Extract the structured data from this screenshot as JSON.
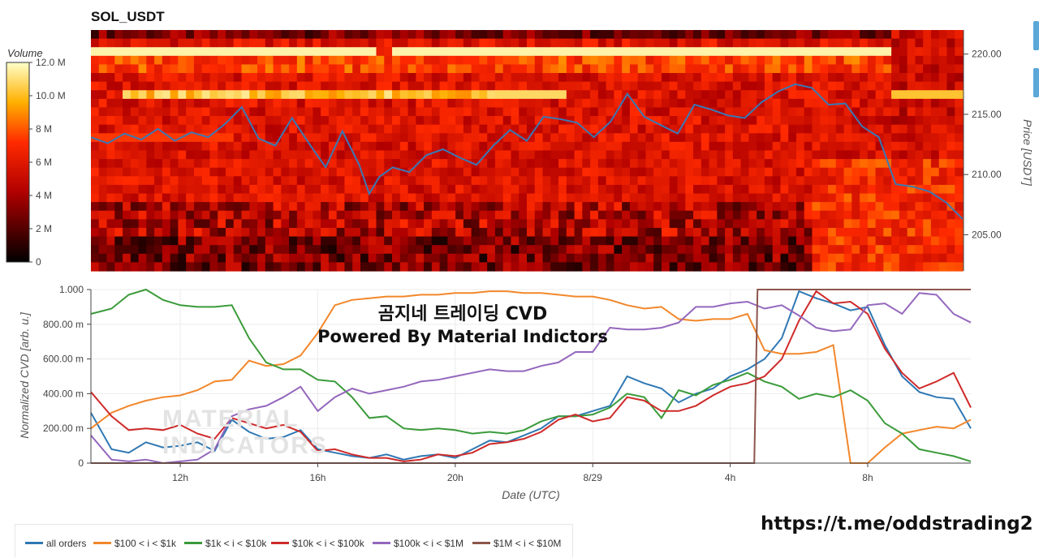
{
  "header": {
    "title": "SOL_USDT"
  },
  "colorbar": {
    "title": "Volume",
    "ticks": [
      "12.0 M",
      "10.0 M",
      "8 M",
      "6 M",
      "4 M",
      "2 M",
      "0"
    ],
    "tick_values": [
      12,
      10,
      8,
      6,
      4,
      2,
      0
    ]
  },
  "overlay": {
    "title": "곰지네 트레이딩 CVD",
    "subtitle": "Powered By Material Indictors",
    "watermark_line1": "MATERIAL",
    "watermark_line2": "INDICATORS"
  },
  "footer": {
    "url": "https://t.me/oddstrading2"
  },
  "colors": {
    "price_line": "#3b78b5",
    "all_orders": "#2f78b4",
    "c100_1k": "#f2872b",
    "c1k_10k": "#3a9b3a",
    "c10k_100k": "#cf2a2a",
    "c100k_1m": "#9467bd",
    "c1m_10m": "#8c564b"
  },
  "chart_data": [
    {
      "type": "heatmap",
      "title": "SOL_USDT",
      "ylabel": "Price [USDT]",
      "ylim": [
        202,
        222
      ],
      "y_ticks": [
        "220.00",
        "215.00",
        "210.00",
        "205.00"
      ],
      "y_tick_values": [
        220,
        215,
        210,
        205
      ],
      "colorbar_label": "Volume",
      "colorbar_range": [
        0,
        12
      ],
      "price_series": {
        "name": "Price",
        "x_hours": [
          9.0,
          9.5,
          10.0,
          10.5,
          11.0,
          11.5,
          12.0,
          12.5,
          13.0,
          13.5,
          14.0,
          14.5,
          15.0,
          15.5,
          16.0,
          16.5,
          17.0,
          17.3,
          17.6,
          18.0,
          18.5,
          19.0,
          19.5,
          20.0,
          20.5,
          21.0,
          21.5,
          22.0,
          22.5,
          23.0,
          23.5,
          24.0,
          24.5,
          25.0,
          25.5,
          26.0,
          26.5,
          27.0,
          27.5,
          28.0,
          28.5,
          29.0,
          29.5,
          30.0,
          30.5,
          31.0,
          31.5,
          32.0,
          32.5,
          33.0,
          33.5,
          34.0,
          34.5,
          35.0
        ],
        "price": [
          213.1,
          212.6,
          213.4,
          212.9,
          213.8,
          212.8,
          213.5,
          213.1,
          214.2,
          215.6,
          213.0,
          212.4,
          214.7,
          212.6,
          210.6,
          213.6,
          210.8,
          208.4,
          209.8,
          210.6,
          210.2,
          211.6,
          212.1,
          211.4,
          210.8,
          212.4,
          213.7,
          212.8,
          214.8,
          214.6,
          214.3,
          213.1,
          214.4,
          216.7,
          214.8,
          214.1,
          213.4,
          215.8,
          215.4,
          214.9,
          214.7,
          216.0,
          216.9,
          217.5,
          217.2,
          215.8,
          215.9,
          214.0,
          213.1,
          209.2,
          209.0,
          208.6,
          207.7,
          206.3
        ]
      }
    },
    {
      "type": "line",
      "xlabel": "Date (UTC)",
      "ylabel": "Normalized CVD [arb. u.]",
      "ylim": [
        0,
        1
      ],
      "y_ticks": [
        "0",
        "200.00 m",
        "400.00 m",
        "600.00 m",
        "800.00 m",
        "1.000"
      ],
      "y_tick_values": [
        0,
        0.2,
        0.4,
        0.6,
        0.8,
        1.0
      ],
      "x_ticks": [
        "12h",
        "16h",
        "20h",
        "8/29",
        "4h",
        "8h"
      ],
      "x_tick_values": [
        12,
        16,
        20,
        24,
        28,
        32
      ],
      "xlim": [
        9.4,
        35.0
      ],
      "x": [
        9.4,
        10,
        10.5,
        11,
        11.5,
        12,
        12.5,
        13,
        13.5,
        14,
        14.5,
        15,
        15.5,
        16,
        16.5,
        17,
        17.5,
        18,
        18.5,
        19,
        19.5,
        20,
        20.5,
        21,
        21.5,
        22,
        22.5,
        23,
        23.5,
        24,
        24.5,
        25,
        25.5,
        26,
        26.5,
        27,
        27.5,
        28,
        28.5,
        29,
        29.5,
        30,
        30.5,
        31,
        31.5,
        32,
        32.5,
        33,
        33.5,
        34,
        34.5,
        35
      ],
      "series": [
        {
          "name": "all orders",
          "values": [
            0.29,
            0.08,
            0.06,
            0.12,
            0.09,
            0.1,
            0.12,
            0.07,
            0.25,
            0.18,
            0.14,
            0.15,
            0.19,
            0.08,
            0.06,
            0.04,
            0.03,
            0.05,
            0.02,
            0.04,
            0.05,
            0.03,
            0.08,
            0.13,
            0.12,
            0.16,
            0.2,
            0.27,
            0.27,
            0.3,
            0.33,
            0.5,
            0.46,
            0.43,
            0.35,
            0.4,
            0.43,
            0.5,
            0.54,
            0.6,
            0.72,
            0.99,
            0.95,
            0.92,
            0.88,
            0.9,
            0.68,
            0.5,
            0.41,
            0.38,
            0.37,
            0.2
          ]
        },
        {
          "name": "$100 < i < $1k",
          "values": [
            0.2,
            0.29,
            0.33,
            0.36,
            0.38,
            0.39,
            0.42,
            0.47,
            0.48,
            0.59,
            0.56,
            0.57,
            0.62,
            0.75,
            0.91,
            0.94,
            0.95,
            0.96,
            0.96,
            0.97,
            0.97,
            0.98,
            0.98,
            0.99,
            0.99,
            0.98,
            0.98,
            0.97,
            0.96,
            0.96,
            0.94,
            0.91,
            0.89,
            0.9,
            0.83,
            0.82,
            0.83,
            0.83,
            0.86,
            0.65,
            0.63,
            0.63,
            0.64,
            0.68,
            0.0,
            0.0,
            0.09,
            0.17,
            0.19,
            0.21,
            0.2,
            0.25
          ]
        },
        {
          "name": "$1k < i < $10k",
          "values": [
            0.86,
            0.89,
            0.97,
            1.0,
            0.94,
            0.91,
            0.9,
            0.9,
            0.91,
            0.72,
            0.58,
            0.54,
            0.54,
            0.48,
            0.47,
            0.38,
            0.26,
            0.27,
            0.2,
            0.19,
            0.2,
            0.19,
            0.17,
            0.18,
            0.17,
            0.19,
            0.24,
            0.27,
            0.27,
            0.28,
            0.32,
            0.4,
            0.38,
            0.26,
            0.42,
            0.39,
            0.45,
            0.48,
            0.52,
            0.47,
            0.44,
            0.37,
            0.4,
            0.38,
            0.42,
            0.36,
            0.23,
            0.17,
            0.08,
            0.06,
            0.04,
            0.01
          ]
        },
        {
          "name": "$10k < i < $100k",
          "values": [
            0.41,
            0.27,
            0.19,
            0.2,
            0.19,
            0.22,
            0.17,
            0.14,
            0.26,
            0.23,
            0.2,
            0.22,
            0.18,
            0.07,
            0.08,
            0.05,
            0.03,
            0.03,
            0.01,
            0.02,
            0.05,
            0.04,
            0.06,
            0.11,
            0.12,
            0.14,
            0.18,
            0.25,
            0.28,
            0.24,
            0.26,
            0.38,
            0.36,
            0.3,
            0.3,
            0.33,
            0.39,
            0.44,
            0.46,
            0.5,
            0.6,
            0.82,
            0.99,
            0.92,
            0.93,
            0.86,
            0.66,
            0.52,
            0.43,
            0.47,
            0.52,
            0.32
          ]
        },
        {
          "name": "$100k < i < $1M",
          "values": [
            0.16,
            0.02,
            0.01,
            0.02,
            0.0,
            0.01,
            0.02,
            0.08,
            0.27,
            0.31,
            0.33,
            0.38,
            0.44,
            0.3,
            0.38,
            0.43,
            0.4,
            0.42,
            0.44,
            0.47,
            0.48,
            0.5,
            0.52,
            0.54,
            0.53,
            0.53,
            0.56,
            0.58,
            0.64,
            0.64,
            0.78,
            0.77,
            0.77,
            0.78,
            0.81,
            0.9,
            0.9,
            0.92,
            0.93,
            0.89,
            0.91,
            0.85,
            0.78,
            0.76,
            0.77,
            0.91,
            0.92,
            0.86,
            0.98,
            0.97,
            0.86,
            0.81
          ]
        },
        {
          "name": "$1M < i < $10M",
          "values": [
            0,
            0,
            0,
            0,
            0,
            0,
            0,
            0,
            0,
            0,
            0,
            0,
            0,
            0,
            0,
            0,
            0,
            0,
            0,
            0,
            0,
            0,
            0,
            0,
            0,
            0,
            0,
            0,
            0,
            0,
            0,
            0,
            0,
            0,
            0,
            0,
            0,
            0,
            0,
            0,
            1.0,
            1.0,
            1.0,
            1.0,
            1.0,
            1.0,
            1.0,
            1.0,
            1.0,
            1.0,
            1.0,
            1.0
          ]
        }
      ]
    }
  ]
}
